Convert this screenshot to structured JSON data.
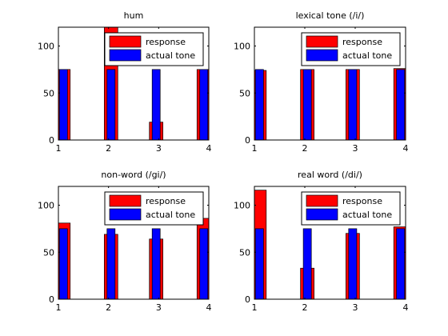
{
  "colors": {
    "response": "#ff0000",
    "actual_tone": "#0000ff",
    "axes": "#000000",
    "background": "#ffffff"
  },
  "chart_data": [
    {
      "type": "bar",
      "title": "hum",
      "xlim": [
        1,
        4
      ],
      "ylim": [
        0,
        120
      ],
      "xticks": [
        1,
        2,
        3,
        4
      ],
      "yticks": [
        0,
        50,
        100
      ],
      "legend": {
        "placement": "top-right",
        "entries": [
          "response",
          "actual tone"
        ]
      },
      "series": [
        {
          "name": "response",
          "x": [
            1.1,
            2.05,
            2.95,
            3.9
          ],
          "values": [
            75,
            120,
            19,
            75
          ]
        },
        {
          "name": "actual tone",
          "x": [
            1.1,
            2.05,
            2.95,
            3.9
          ],
          "values": [
            75,
            75,
            75,
            75
          ]
        }
      ]
    },
    {
      "type": "bar",
      "title": "lexical tone (/i/)",
      "xlim": [
        1,
        4
      ],
      "ylim": [
        0,
        120
      ],
      "xticks": [
        1,
        2,
        3,
        4
      ],
      "yticks": [
        0,
        50,
        100
      ],
      "legend": {
        "placement": "top-right",
        "entries": [
          "response",
          "actual tone"
        ]
      },
      "series": [
        {
          "name": "response",
          "x": [
            1.1,
            2.05,
            2.95,
            3.9
          ],
          "values": [
            74,
            75,
            75,
            76
          ]
        },
        {
          "name": "actual tone",
          "x": [
            1.1,
            2.05,
            2.95,
            3.9
          ],
          "values": [
            75,
            75,
            75,
            75
          ]
        }
      ]
    },
    {
      "type": "bar",
      "title": "non-word (/gi/)",
      "xlim": [
        1,
        4
      ],
      "ylim": [
        0,
        120
      ],
      "xticks": [
        1,
        2,
        3,
        4
      ],
      "yticks": [
        0,
        50,
        100
      ],
      "legend": {
        "placement": "top-right",
        "entries": [
          "response",
          "actual tone"
        ]
      },
      "series": [
        {
          "name": "response",
          "x": [
            1.1,
            2.05,
            2.95,
            3.9
          ],
          "values": [
            81,
            69,
            64,
            86
          ]
        },
        {
          "name": "actual tone",
          "x": [
            1.1,
            2.05,
            2.95,
            3.9
          ],
          "values": [
            75,
            75,
            75,
            75
          ]
        }
      ]
    },
    {
      "type": "bar",
      "title": "real word (/di/)",
      "xlim": [
        1,
        4
      ],
      "ylim": [
        0,
        120
      ],
      "xticks": [
        1,
        2,
        3,
        4
      ],
      "yticks": [
        0,
        50,
        100
      ],
      "legend": {
        "placement": "top-right",
        "entries": [
          "response",
          "actual tone"
        ]
      },
      "series": [
        {
          "name": "response",
          "x": [
            1.1,
            2.05,
            2.95,
            3.9
          ],
          "values": [
            116,
            33,
            70,
            77
          ]
        },
        {
          "name": "actual tone",
          "x": [
            1.1,
            2.05,
            2.95,
            3.9
          ],
          "values": [
            75,
            75,
            75,
            75
          ]
        }
      ]
    }
  ]
}
